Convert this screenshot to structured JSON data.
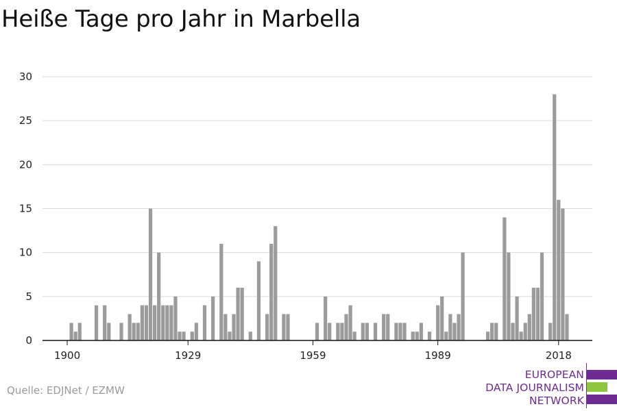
{
  "title": "Heiße Tage pro Jahr in Marbella",
  "source": "Quelle: EDJNet / EZMW",
  "logo": {
    "lines": [
      "EUROPEAN",
      "DATA JOURNALISM",
      "NETWORK"
    ],
    "colors": {
      "purple": "#6d2c91",
      "green": "#8dc63f"
    }
  },
  "chart_data": {
    "type": "bar",
    "title": "Heiße Tage pro Jahr in Marbella",
    "xlabel": "",
    "ylabel": "",
    "x_start": 1900,
    "x_end": 2018,
    "x_ticks": [
      "1900",
      "1929",
      "1959",
      "1989",
      "2018"
    ],
    "y_ticks": [
      "0",
      "5",
      "10",
      "15",
      "20",
      "25",
      "30"
    ],
    "ylim": [
      0,
      30
    ],
    "grid": true,
    "bar_color": "#9b9b9b",
    "values": [
      0,
      2,
      1,
      2,
      0,
      0,
      0,
      4,
      0,
      4,
      2,
      0,
      0,
      2,
      0,
      3,
      2,
      2,
      4,
      4,
      15,
      4,
      10,
      4,
      4,
      4,
      5,
      1,
      1,
      0,
      1,
      2,
      0,
      4,
      0,
      5,
      0,
      11,
      3,
      1,
      3,
      6,
      6,
      0,
      1,
      0,
      9,
      0,
      3,
      11,
      13,
      0,
      3,
      3,
      0,
      0,
      0,
      0,
      0,
      0,
      2,
      0,
      5,
      2,
      0,
      2,
      2,
      3,
      4,
      1,
      0,
      2,
      2,
      0,
      2,
      0,
      3,
      3,
      0,
      2,
      2,
      2,
      0,
      1,
      1,
      2,
      0,
      1,
      0,
      4,
      5,
      1,
      3,
      2,
      3,
      10,
      0,
      0,
      0,
      0,
      0,
      1,
      2,
      2,
      0,
      14,
      10,
      2,
      5,
      1,
      2,
      3,
      6,
      6,
      10,
      0,
      2,
      28,
      16,
      15,
      3
    ]
  }
}
